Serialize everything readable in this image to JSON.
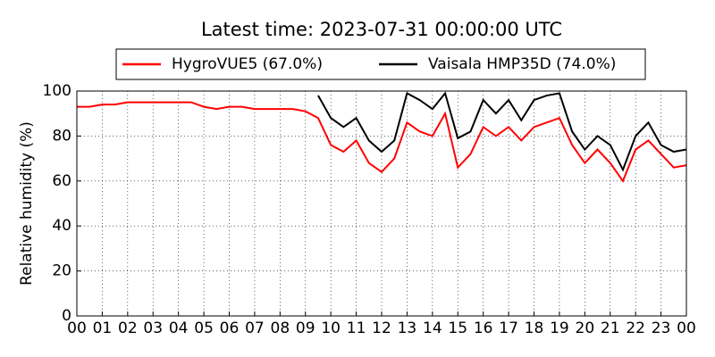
{
  "chart_data": {
    "type": "line",
    "title": "Latest time: 2023-07-31 00:00:00 UTC",
    "y_label": "Relative humidity (%)",
    "x": [
      0,
      0.5,
      1,
      1.5,
      2,
      2.5,
      3,
      3.5,
      4,
      4.5,
      5,
      5.5,
      6,
      6.5,
      7,
      7.5,
      8,
      8.5,
      9,
      9.5,
      10,
      10.5,
      11,
      11.5,
      12,
      12.5,
      13,
      13.5,
      14,
      14.5,
      15,
      15.5,
      16,
      16.5,
      17,
      17.5,
      18,
      18.5,
      19,
      19.5,
      20,
      20.5,
      21,
      21.5,
      22,
      22.5,
      23,
      23.5,
      24
    ],
    "series": [
      {
        "name": "HygroVUE5 (67.0%)",
        "color": "#ff0000",
        "values": [
          93,
          93,
          94,
          94,
          95,
          95,
          95,
          95,
          95,
          95,
          93,
          92,
          93,
          93,
          92,
          92,
          92,
          92,
          91,
          88,
          76,
          73,
          78,
          68,
          64,
          70,
          86,
          82,
          80,
          90,
          66,
          72,
          84,
          80,
          84,
          78,
          84,
          86,
          88,
          76,
          68,
          74,
          68,
          60,
          74,
          78,
          72,
          66,
          67
        ]
      },
      {
        "name": "Vaisala HMP35D (74.0%)",
        "color": "#000000",
        "values": [
          null,
          null,
          null,
          null,
          null,
          null,
          null,
          null,
          null,
          null,
          null,
          null,
          null,
          null,
          null,
          null,
          null,
          null,
          null,
          98,
          88,
          84,
          88,
          78,
          73,
          78,
          99,
          96,
          92,
          99,
          79,
          82,
          96,
          90,
          96,
          87,
          96,
          98,
          99,
          82,
          74,
          80,
          76,
          65,
          80,
          86,
          76,
          73,
          74
        ]
      }
    ],
    "xlim": [
      0,
      24
    ],
    "xticks": [
      {
        "value": 0,
        "label": "00"
      },
      {
        "value": 1,
        "label": "01"
      },
      {
        "value": 2,
        "label": "02"
      },
      {
        "value": 3,
        "label": "03"
      },
      {
        "value": 4,
        "label": "04"
      },
      {
        "value": 5,
        "label": "05"
      },
      {
        "value": 6,
        "label": "06"
      },
      {
        "value": 7,
        "label": "07"
      },
      {
        "value": 8,
        "label": "08"
      },
      {
        "value": 9,
        "label": "09"
      },
      {
        "value": 10,
        "label": "10"
      },
      {
        "value": 11,
        "label": "11"
      },
      {
        "value": 12,
        "label": "12"
      },
      {
        "value": 13,
        "label": "13"
      },
      {
        "value": 14,
        "label": "14"
      },
      {
        "value": 15,
        "label": "15"
      },
      {
        "value": 16,
        "label": "16"
      },
      {
        "value": 17,
        "label": "17"
      },
      {
        "value": 18,
        "label": "18"
      },
      {
        "value": 19,
        "label": "19"
      },
      {
        "value": 20,
        "label": "20"
      },
      {
        "value": 21,
        "label": "21"
      },
      {
        "value": 22,
        "label": "22"
      },
      {
        "value": 23,
        "label": "23"
      },
      {
        "value": 24,
        "label": "00"
      }
    ],
    "ylim": [
      0,
      100
    ],
    "yticks": [
      0,
      20,
      40,
      60,
      80,
      100
    ],
    "grid": true,
    "legend": "top"
  }
}
